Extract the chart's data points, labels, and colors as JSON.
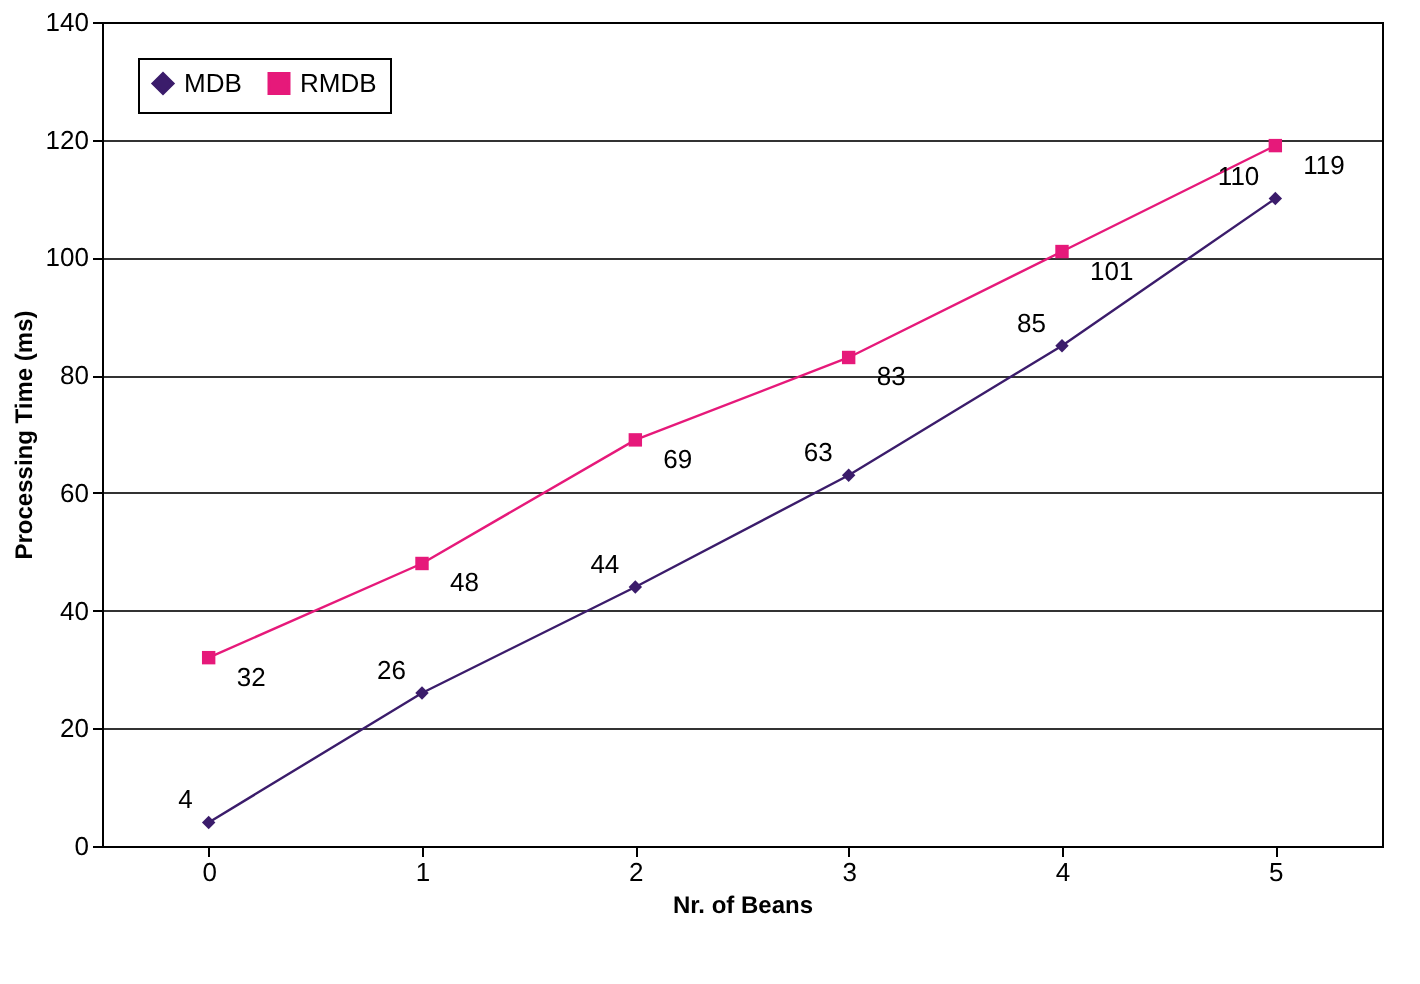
{
  "chart_data": {
    "type": "line",
    "xlabel": "Nr. of Beans",
    "ylabel": "Processing Time (ms)",
    "categories": [
      "0",
      "1",
      "2",
      "3",
      "4",
      "5"
    ],
    "series": [
      {
        "name": "MDB",
        "color": "#3b1c6b",
        "marker": "diamond",
        "values": [
          4,
          26,
          44,
          63,
          85,
          110
        ]
      },
      {
        "name": "RMDB",
        "color": "#e6197a",
        "marker": "square",
        "values": [
          32,
          48,
          69,
          83,
          101,
          119
        ]
      }
    ],
    "ylim": [
      0,
      140
    ],
    "yticks": [
      0,
      20,
      40,
      60,
      80,
      100,
      120,
      140
    ],
    "grid": "y",
    "legend": "top left",
    "data_labels": true,
    "line_style": "solid"
  }
}
